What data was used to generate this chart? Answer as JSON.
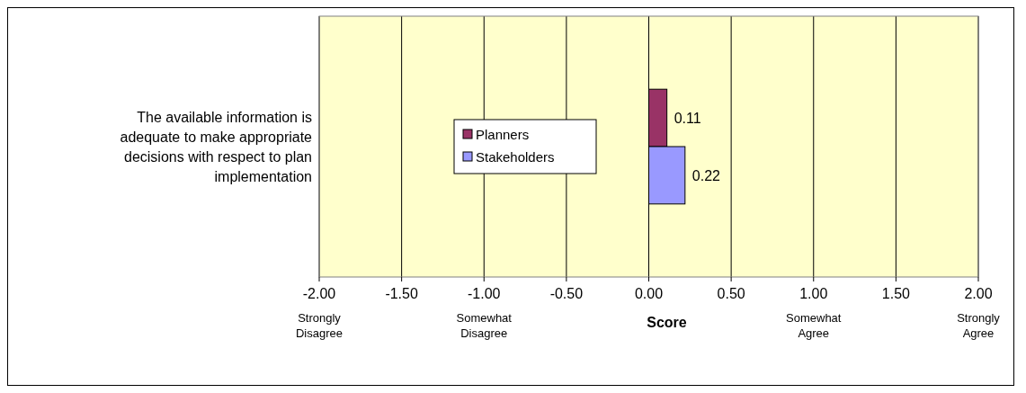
{
  "chart_data": {
    "type": "bar",
    "orientation": "horizontal",
    "categories": [
      "The available information is adequate to make appropriate decisions with respect to plan implementation"
    ],
    "series": [
      {
        "name": "Planners",
        "color": "#993366",
        "values": [
          0.11
        ]
      },
      {
        "name": "Stakeholders",
        "color": "#9999ff",
        "values": [
          0.22
        ]
      }
    ],
    "xlim": [
      -2,
      2
    ],
    "xticks": [
      {
        "value": -2,
        "label": "-2.00"
      },
      {
        "value": -1.5,
        "label": "-1.50"
      },
      {
        "value": -1,
        "label": "-1.00"
      },
      {
        "value": -0.5,
        "label": "-0.50"
      },
      {
        "value": 0,
        "label": "0.00"
      },
      {
        "value": 0.5,
        "label": "0.50"
      },
      {
        "value": 1,
        "label": "1.00"
      },
      {
        "value": 1.5,
        "label": "1.50"
      },
      {
        "value": 2,
        "label": "2.00"
      }
    ],
    "xlabel": "Score",
    "grid": "x",
    "legend": "left",
    "data_labels": true,
    "annotations": [
      "Strongly Disagree",
      "Somewhat Disagree",
      "Somewhat Agree",
      "Strongly Agree"
    ]
  }
}
